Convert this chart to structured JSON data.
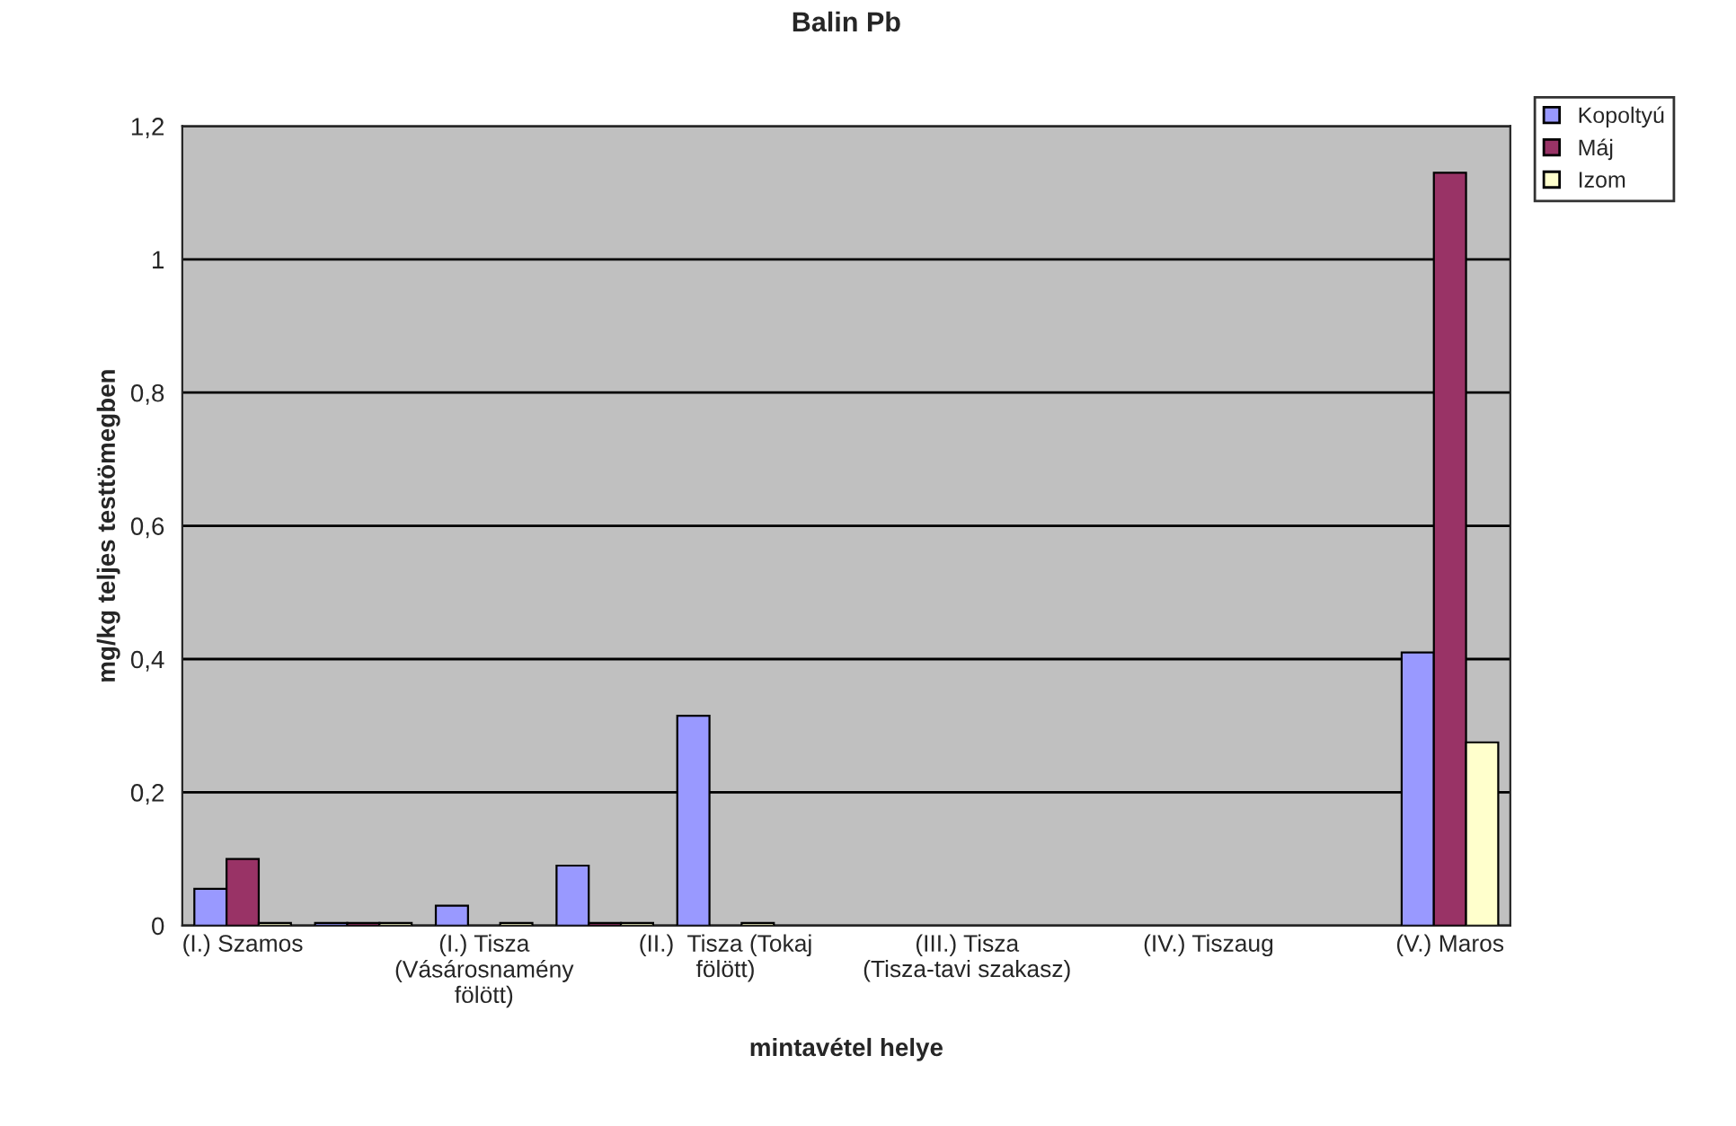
{
  "chart_data": {
    "type": "bar",
    "title": "Balin Pb",
    "xlabel": "mintavétel helye",
    "ylabel": "mg/kg teljes testtömegben",
    "categories": [
      "(I.) Szamos",
      null,
      "(I.) Tisza (Vásárosnamény fölött)",
      null,
      "(II.)  Tisza (Tokaj fölött)",
      null,
      "(III.) Tisza (Tisza-tavi szakasz)",
      null,
      "(IV.) Tiszaug",
      null,
      "(V.) Maros"
    ],
    "series": [
      {
        "name": "Kopoltyú",
        "color": "#9999ff",
        "values": [
          0.055,
          0,
          0.03,
          0.09,
          0.315,
          null,
          null,
          null,
          null,
          null,
          0.41
        ]
      },
      {
        "name": "Máj",
        "color": "#993366",
        "values": [
          0.1,
          0,
          null,
          0,
          null,
          null,
          null,
          null,
          null,
          null,
          1.13
        ]
      },
      {
        "name": "Izom",
        "color": "#ffffcc",
        "values": [
          0,
          0,
          0,
          0,
          0,
          null,
          null,
          null,
          null,
          null,
          0.275
        ]
      }
    ],
    "ylim": [
      0,
      1.2
    ],
    "yticks": [
      {
        "value": 0,
        "label": "0"
      },
      {
        "value": 0.2,
        "label": "0,2"
      },
      {
        "value": 0.4,
        "label": "0,4"
      },
      {
        "value": 0.6,
        "label": "0,6"
      },
      {
        "value": 0.8,
        "label": "0,8"
      },
      {
        "value": 1,
        "label": "1"
      },
      {
        "value": 1.2,
        "label": "1,2"
      }
    ],
    "grid": "y",
    "legend": "top right"
  }
}
